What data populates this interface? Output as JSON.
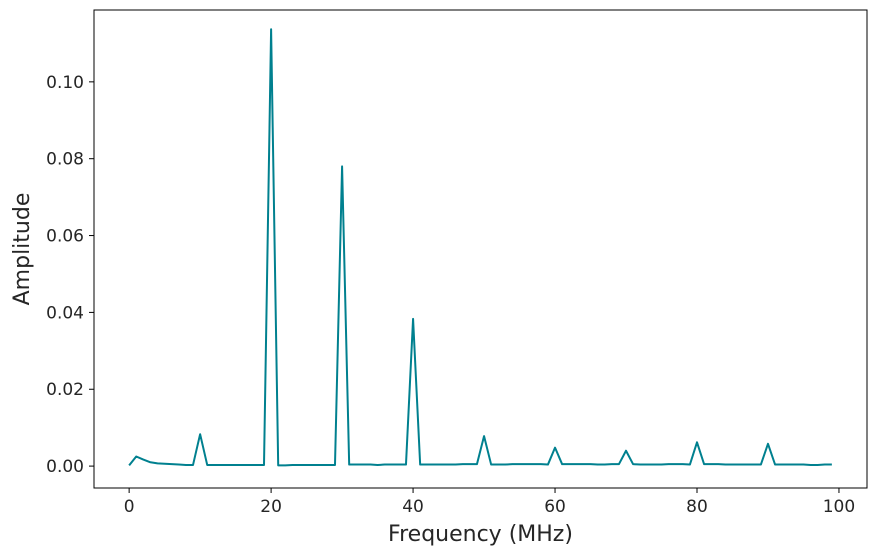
{
  "chart_data": {
    "type": "line",
    "title": "",
    "xlabel": "Frequency (MHz)",
    "ylabel": "Amplitude",
    "xlim": [
      -4.95,
      103.95
    ],
    "ylim": [
      -0.0057,
      0.1187
    ],
    "x_ticks": [
      0,
      20,
      40,
      60,
      80,
      100
    ],
    "x_tick_labels": [
      "0",
      "20",
      "40",
      "60",
      "80",
      "100"
    ],
    "y_ticks": [
      0.0,
      0.02,
      0.04,
      0.06,
      0.08,
      0.1
    ],
    "y_tick_labels": [
      "0.00",
      "0.02",
      "0.04",
      "0.06",
      "0.08",
      "0.10"
    ],
    "grid": false,
    "legend": "none",
    "line_color": "#00808f",
    "series": [
      {
        "x": [
          0,
          1,
          2,
          3,
          4,
          5,
          6,
          7,
          8,
          9,
          10,
          11,
          12,
          13,
          14,
          15,
          16,
          17,
          18,
          19,
          20,
          21,
          22,
          23,
          24,
          25,
          26,
          27,
          28,
          29,
          30,
          31,
          32,
          33,
          34,
          35,
          36,
          37,
          38,
          39,
          40,
          41,
          42,
          43,
          44,
          45,
          46,
          47,
          48,
          49,
          50,
          51,
          52,
          53,
          54,
          55,
          56,
          57,
          58,
          59,
          60,
          61,
          62,
          63,
          64,
          65,
          66,
          67,
          68,
          69,
          70,
          71,
          72,
          73,
          74,
          75,
          76,
          77,
          78,
          79,
          80,
          81,
          82,
          83,
          84,
          85,
          86,
          87,
          88,
          89,
          90,
          91,
          92,
          93,
          94,
          95,
          96,
          97,
          98,
          99
        ],
        "values": [
          0.0002,
          0.0025,
          0.0017,
          0.001,
          0.0007,
          0.0006,
          0.0005,
          0.0004,
          0.0003,
          0.0003,
          0.0083,
          0.0003,
          0.0003,
          0.0003,
          0.0003,
          0.0003,
          0.0003,
          0.0003,
          0.0003,
          0.0003,
          0.1137,
          0.0002,
          0.0002,
          0.0003,
          0.0003,
          0.0003,
          0.0003,
          0.0003,
          0.0003,
          0.0003,
          0.078,
          0.0004,
          0.0004,
          0.0004,
          0.0004,
          0.0003,
          0.0004,
          0.0004,
          0.0004,
          0.0004,
          0.0383,
          0.0004,
          0.0004,
          0.0004,
          0.0004,
          0.0004,
          0.0004,
          0.0005,
          0.0005,
          0.0005,
          0.0078,
          0.0004,
          0.0004,
          0.0004,
          0.0005,
          0.0005,
          0.0005,
          0.0005,
          0.0005,
          0.0004,
          0.0048,
          0.0005,
          0.0005,
          0.0005,
          0.0005,
          0.0005,
          0.0004,
          0.0004,
          0.0005,
          0.0005,
          0.004,
          0.0005,
          0.0004,
          0.0004,
          0.0004,
          0.0004,
          0.0005,
          0.0005,
          0.0005,
          0.0004,
          0.0062,
          0.0005,
          0.0005,
          0.0005,
          0.0004,
          0.0004,
          0.0004,
          0.0004,
          0.0004,
          0.0004,
          0.0058,
          0.0004,
          0.0004,
          0.0004,
          0.0004,
          0.0004,
          0.0003,
          0.0003,
          0.0004,
          0.0004
        ]
      }
    ]
  }
}
